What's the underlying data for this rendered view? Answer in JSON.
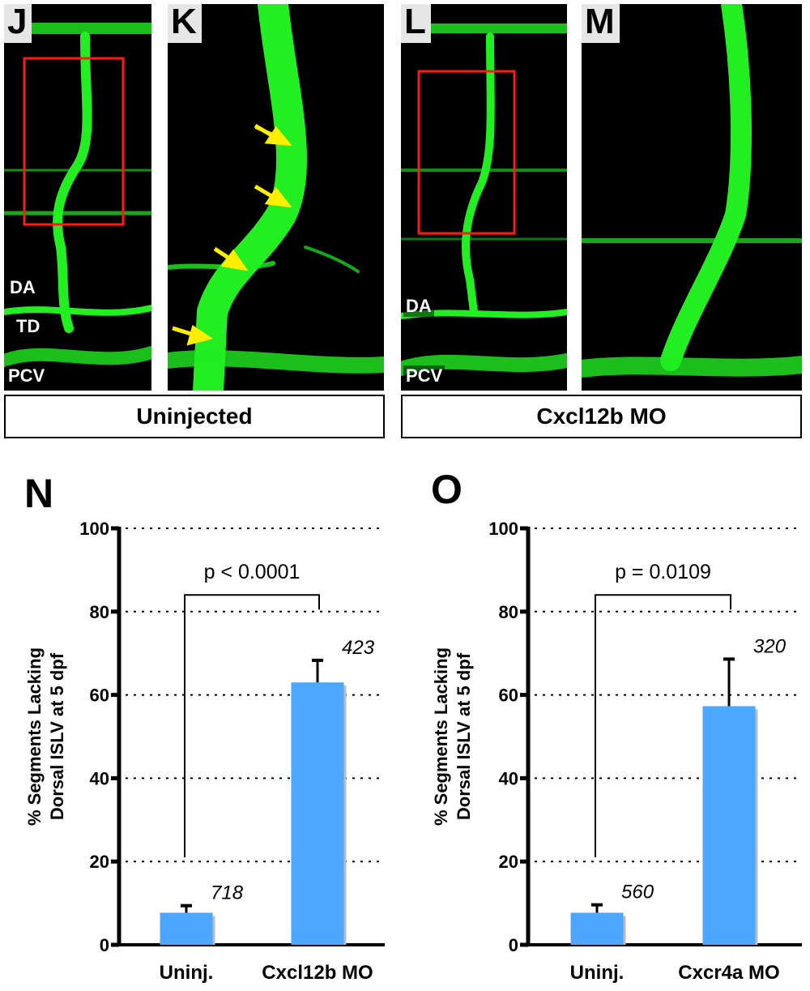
{
  "panels": {
    "J": {
      "letter": "J",
      "labels": [
        "DA",
        "TD",
        "PCV"
      ]
    },
    "K": {
      "letter": "K"
    },
    "L": {
      "letter": "L",
      "labels": [
        "DA",
        "PCV"
      ]
    },
    "M": {
      "letter": "M"
    }
  },
  "conditions": [
    "Uninjected",
    "Cxcl12b MO"
  ],
  "colors": {
    "vessel": "#22ee22",
    "box": "#ff1a1a",
    "arrow": "#ffee00",
    "bar": "#4da6ff"
  },
  "chart_data": [
    {
      "panel": "N",
      "type": "bar",
      "categories": [
        "Uninj.",
        "Cxcl12b MO"
      ],
      "values": [
        7.7,
        63.0
      ],
      "error": [
        1.7,
        5.3
      ],
      "n_labels": [
        "718",
        "423"
      ],
      "ylabel": [
        "% Segments Lacking",
        "Dorsal ISLV at 5 dpf"
      ],
      "ylim": [
        0,
        100
      ],
      "yticks": [
        "0",
        "20",
        "40",
        "60",
        "80",
        "100"
      ],
      "grid": true,
      "annotation": "p < 0.0001"
    },
    {
      "panel": "O",
      "type": "bar",
      "categories": [
        "Uninj.",
        "Cxcr4a MO"
      ],
      "values": [
        7.7,
        57.3
      ],
      "error": [
        1.9,
        11.3
      ],
      "n_labels": [
        "560",
        "320"
      ],
      "ylabel": [
        "% Segments Lacking",
        "Dorsal ISLV at 5 dpf"
      ],
      "ylim": [
        0,
        100
      ],
      "yticks": [
        "0",
        "20",
        "40",
        "60",
        "80",
        "100"
      ],
      "grid": true,
      "annotation": "p = 0.0109"
    }
  ]
}
